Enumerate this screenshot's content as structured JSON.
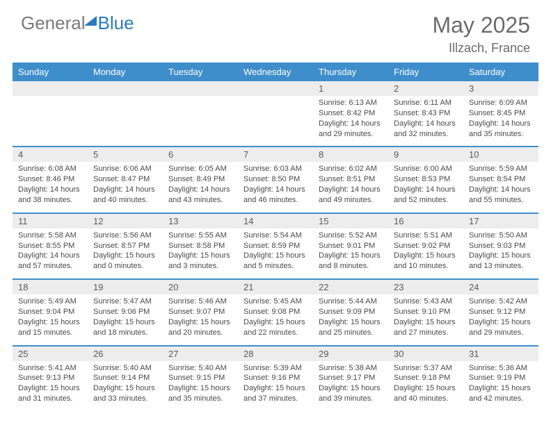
{
  "brand": {
    "part1": "General",
    "part2": "Blue"
  },
  "title": {
    "month": "May 2025",
    "location": "Illzach, France"
  },
  "colors": {
    "header_bg": "#3f8ecc",
    "header_text": "#ffffff",
    "daynum_bg": "#ededed",
    "border": "#3f8ecc",
    "text": "#4a4a4a",
    "brand_gray": "#7a7a7a",
    "brand_blue": "#2a7abf"
  },
  "dayNames": [
    "Sunday",
    "Monday",
    "Tuesday",
    "Wednesday",
    "Thursday",
    "Friday",
    "Saturday"
  ],
  "weeks": [
    [
      null,
      null,
      null,
      null,
      {
        "n": "1",
        "sr": "6:13 AM",
        "ss": "8:42 PM",
        "dl": "14 hours and 29 minutes."
      },
      {
        "n": "2",
        "sr": "6:11 AM",
        "ss": "8:43 PM",
        "dl": "14 hours and 32 minutes."
      },
      {
        "n": "3",
        "sr": "6:09 AM",
        "ss": "8:45 PM",
        "dl": "14 hours and 35 minutes."
      }
    ],
    [
      {
        "n": "4",
        "sr": "6:08 AM",
        "ss": "8:46 PM",
        "dl": "14 hours and 38 minutes."
      },
      {
        "n": "5",
        "sr": "6:06 AM",
        "ss": "8:47 PM",
        "dl": "14 hours and 40 minutes."
      },
      {
        "n": "6",
        "sr": "6:05 AM",
        "ss": "8:49 PM",
        "dl": "14 hours and 43 minutes."
      },
      {
        "n": "7",
        "sr": "6:03 AM",
        "ss": "8:50 PM",
        "dl": "14 hours and 46 minutes."
      },
      {
        "n": "8",
        "sr": "6:02 AM",
        "ss": "8:51 PM",
        "dl": "14 hours and 49 minutes."
      },
      {
        "n": "9",
        "sr": "6:00 AM",
        "ss": "8:53 PM",
        "dl": "14 hours and 52 minutes."
      },
      {
        "n": "10",
        "sr": "5:59 AM",
        "ss": "8:54 PM",
        "dl": "14 hours and 55 minutes."
      }
    ],
    [
      {
        "n": "11",
        "sr": "5:58 AM",
        "ss": "8:55 PM",
        "dl": "14 hours and 57 minutes."
      },
      {
        "n": "12",
        "sr": "5:56 AM",
        "ss": "8:57 PM",
        "dl": "15 hours and 0 minutes."
      },
      {
        "n": "13",
        "sr": "5:55 AM",
        "ss": "8:58 PM",
        "dl": "15 hours and 3 minutes."
      },
      {
        "n": "14",
        "sr": "5:54 AM",
        "ss": "8:59 PM",
        "dl": "15 hours and 5 minutes."
      },
      {
        "n": "15",
        "sr": "5:52 AM",
        "ss": "9:01 PM",
        "dl": "15 hours and 8 minutes."
      },
      {
        "n": "16",
        "sr": "5:51 AM",
        "ss": "9:02 PM",
        "dl": "15 hours and 10 minutes."
      },
      {
        "n": "17",
        "sr": "5:50 AM",
        "ss": "9:03 PM",
        "dl": "15 hours and 13 minutes."
      }
    ],
    [
      {
        "n": "18",
        "sr": "5:49 AM",
        "ss": "9:04 PM",
        "dl": "15 hours and 15 minutes."
      },
      {
        "n": "19",
        "sr": "5:47 AM",
        "ss": "9:06 PM",
        "dl": "15 hours and 18 minutes."
      },
      {
        "n": "20",
        "sr": "5:46 AM",
        "ss": "9:07 PM",
        "dl": "15 hours and 20 minutes."
      },
      {
        "n": "21",
        "sr": "5:45 AM",
        "ss": "9:08 PM",
        "dl": "15 hours and 22 minutes."
      },
      {
        "n": "22",
        "sr": "5:44 AM",
        "ss": "9:09 PM",
        "dl": "15 hours and 25 minutes."
      },
      {
        "n": "23",
        "sr": "5:43 AM",
        "ss": "9:10 PM",
        "dl": "15 hours and 27 minutes."
      },
      {
        "n": "24",
        "sr": "5:42 AM",
        "ss": "9:12 PM",
        "dl": "15 hours and 29 minutes."
      }
    ],
    [
      {
        "n": "25",
        "sr": "5:41 AM",
        "ss": "9:13 PM",
        "dl": "15 hours and 31 minutes."
      },
      {
        "n": "26",
        "sr": "5:40 AM",
        "ss": "9:14 PM",
        "dl": "15 hours and 33 minutes."
      },
      {
        "n": "27",
        "sr": "5:40 AM",
        "ss": "9:15 PM",
        "dl": "15 hours and 35 minutes."
      },
      {
        "n": "28",
        "sr": "5:39 AM",
        "ss": "9:16 PM",
        "dl": "15 hours and 37 minutes."
      },
      {
        "n": "29",
        "sr": "5:38 AM",
        "ss": "9:17 PM",
        "dl": "15 hours and 39 minutes."
      },
      {
        "n": "30",
        "sr": "5:37 AM",
        "ss": "9:18 PM",
        "dl": "15 hours and 40 minutes."
      },
      {
        "n": "31",
        "sr": "5:36 AM",
        "ss": "9:19 PM",
        "dl": "15 hours and 42 minutes."
      }
    ]
  ],
  "labels": {
    "sunrise": "Sunrise:",
    "sunset": "Sunset:",
    "daylight": "Daylight:"
  }
}
